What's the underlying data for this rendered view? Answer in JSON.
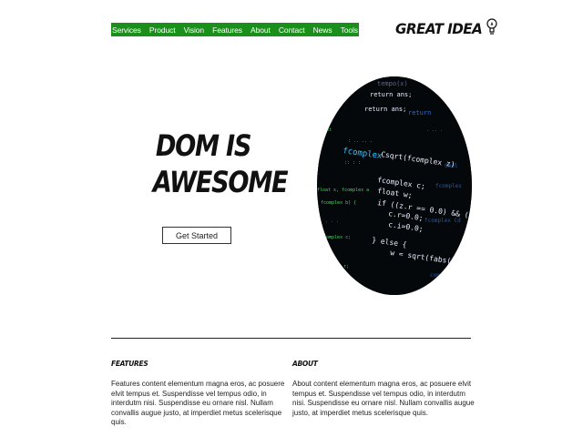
{
  "nav": {
    "items": [
      "Services",
      "Product",
      "Vision",
      "Features",
      "About",
      "Contact",
      "News",
      "Tools"
    ]
  },
  "logo": {
    "text": "GREAT IDEA",
    "icon": "lightbulb-icon"
  },
  "hero": {
    "title_line1": "DOM IS",
    "title_line2": "AWESOME",
    "cta_label": "Get Started",
    "image": "code-screen-image"
  },
  "sections": [
    {
      "heading": "FEATURES",
      "body": "Features content elementum magna eros, ac posuere elvit tempus et. Suspendisse vel tempus odio, in interdutm nisi. Suspendisse eu ornare nisl. Nullam convallis augue justo, at imperdiet metus scelerisque quis."
    },
    {
      "heading": "ABOUT",
      "body": "About content elementum magna eros, ac posuere elvit tempus et. Suspendisse vel tempus odio, in interdutm nisi. Suspendisse eu ornare nisl. Nullam convallis augue justo, at imperdiet metus scelerisque quis."
    }
  ],
  "colors": {
    "nav_bg": "#1a8f1a",
    "nav_text": "#ffffff"
  }
}
